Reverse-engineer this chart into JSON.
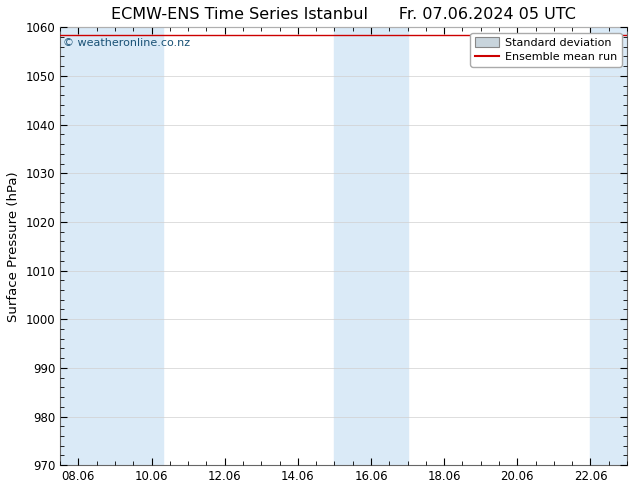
{
  "title_left": "ECMW-ENS Time Series Istanbul",
  "title_right": "Fr. 07.06.2024 05 UTC",
  "ylabel": "Surface Pressure (hPa)",
  "ylim": [
    970,
    1060
  ],
  "yticks": [
    970,
    980,
    990,
    1000,
    1010,
    1020,
    1030,
    1040,
    1050,
    1060
  ],
  "xlim_num": [
    7.5,
    23.0
  ],
  "xtick_labels": [
    "08.06",
    "10.06",
    "12.06",
    "14.06",
    "16.06",
    "18.06",
    "20.06",
    "22.06"
  ],
  "xtick_positions": [
    8.0,
    10.0,
    12.0,
    14.0,
    16.0,
    18.0,
    20.0,
    22.0
  ],
  "shaded_bands": [
    {
      "xmin": 7.5,
      "xmax": 10.3,
      "color": "#daeaf7"
    },
    {
      "xmin": 15.0,
      "xmax": 17.0,
      "color": "#daeaf7"
    },
    {
      "xmin": 22.0,
      "xmax": 23.0,
      "color": "#daeaf7"
    }
  ],
  "mean_line_color": "#cc0000",
  "watermark_text": "© weatheronline.co.nz",
  "watermark_color": "#1a5276",
  "background_color": "#ffffff",
  "plot_bg_color": "#ffffff",
  "legend_std_facecolor": "#c8d4dc",
  "legend_std_edgecolor": "#888888",
  "legend_mean_color": "#cc0000",
  "title_fontsize": 11.5,
  "tick_fontsize": 8.5,
  "ylabel_fontsize": 9.5,
  "watermark_fontsize": 8,
  "legend_fontsize": 8
}
